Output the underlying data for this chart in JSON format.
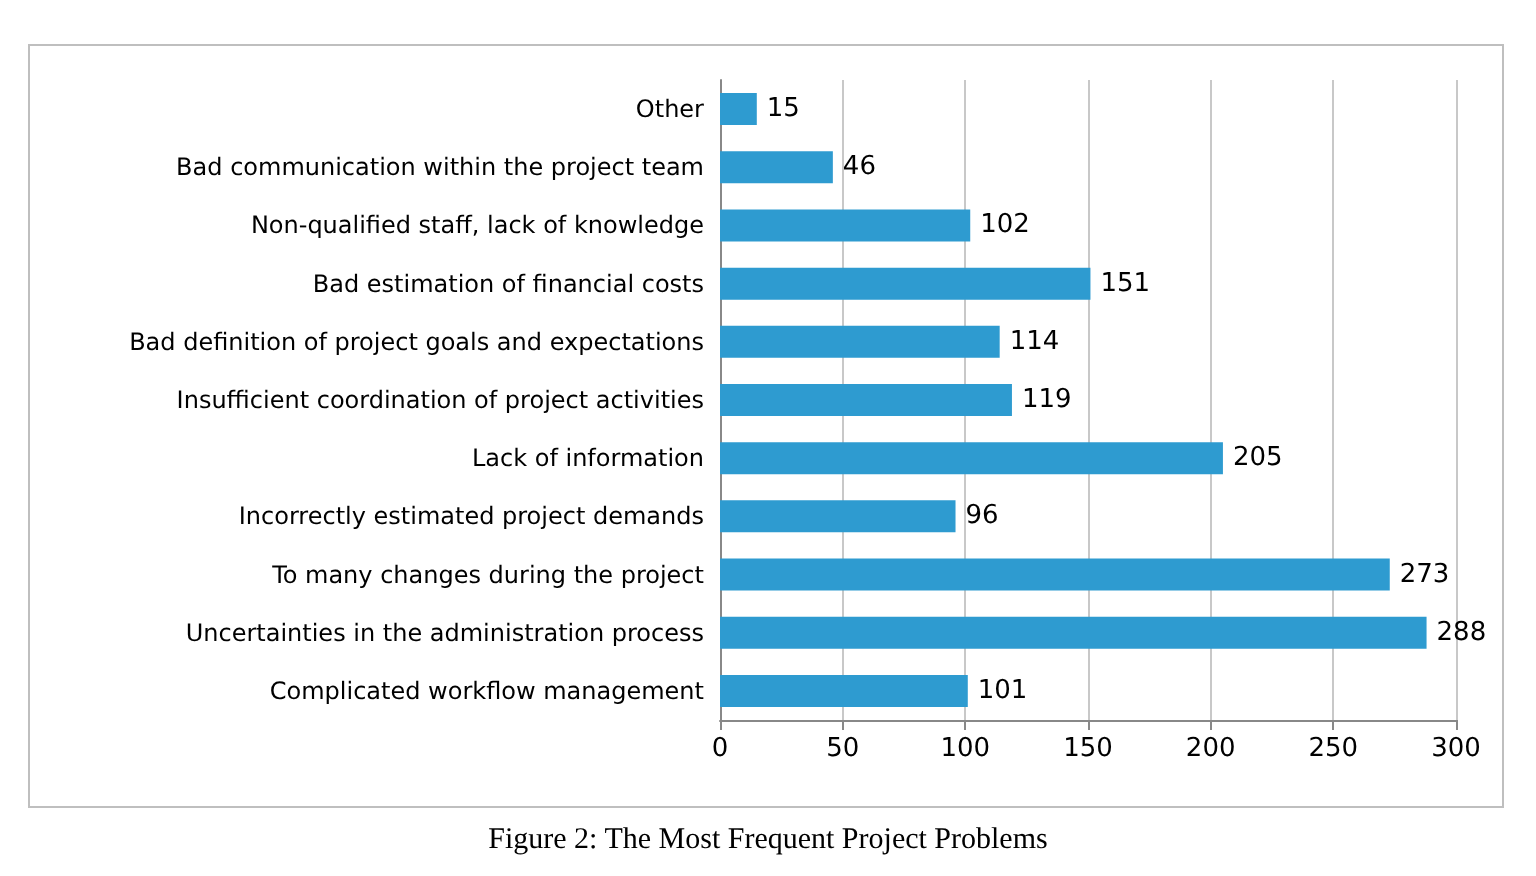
{
  "chart_data": {
    "type": "bar",
    "orientation": "horizontal",
    "categories": [
      "Other",
      "Bad communication within the project team",
      "Non-qualified staff, lack of knowledge",
      "Bad estimation of financial costs",
      "Bad definition of project goals and expectations",
      "Insufficient coordination of project activities",
      "Lack of information",
      "Incorrectly estimated project demands",
      "To many changes during the project",
      "Uncertainties in the administration process",
      "Complicated workflow management"
    ],
    "values": [
      15,
      46,
      102,
      151,
      114,
      119,
      205,
      96,
      273,
      288,
      101
    ],
    "color": "#2e9bd0",
    "xlim": [
      0,
      300
    ],
    "xticks": [
      0,
      50,
      100,
      150,
      200,
      250,
      300
    ],
    "grid": "x",
    "data_labels": true,
    "annotations": [
      "Figure 2: The Most Frequent Project Problems"
    ]
  }
}
